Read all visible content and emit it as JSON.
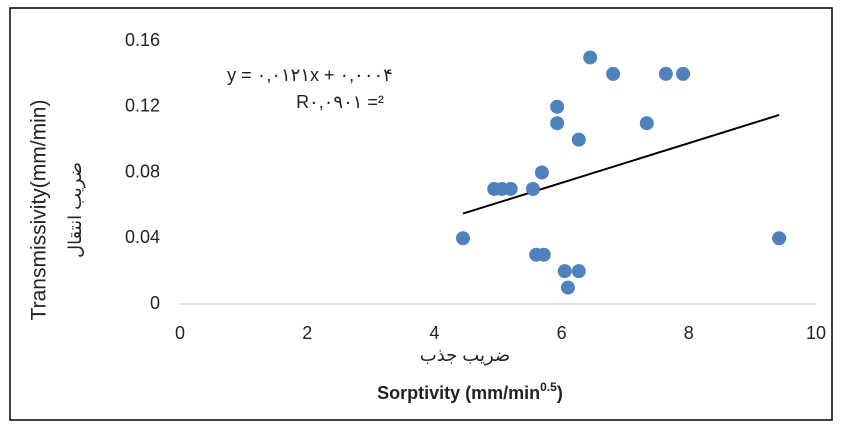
{
  "chart_data": {
    "type": "scatter",
    "x_label_fa": "ضریب جذب",
    "x_label": [
      "Sorptivity (mm/min",
      "0.5",
      ")"
    ],
    "y_label": "Transmissivity(mm/min)",
    "y_label_fa": "ضریب انتقال",
    "annotations": [
      "y = ۰,۰۱۲۱x + ۰,۰۰۰۴",
      "R۰,۰۹۰۱ =²"
    ],
    "series": [
      {
        "color": "#4f81bd",
        "x": [
          6.45,
          6.81,
          7.64,
          7.91,
          5.93,
          5.93,
          7.34,
          6.27,
          5.69,
          4.94,
          5.06,
          5.2,
          5.55,
          4.45,
          9.42,
          5.6,
          5.72,
          6.05,
          6.27,
          6.1
        ],
        "values": [
          0.15,
          0.14,
          0.14,
          0.14,
          0.12,
          0.11,
          0.11,
          0.1,
          0.08,
          0.07,
          0.07,
          0.07,
          0.07,
          0.04,
          0.04,
          0.03,
          0.03,
          0.02,
          0.02,
          0.01
        ]
      }
    ],
    "trendline": {
      "color": "#000000",
      "x": [
        4.45,
        9.42
      ],
      "values": [
        0.055,
        0.115
      ]
    },
    "xlim": [
      0,
      10
    ],
    "xticks": [
      0,
      2,
      4,
      6,
      8,
      10
    ],
    "ylim": [
      0,
      0.16
    ],
    "yticks": [
      0,
      0.04,
      0.08,
      0.12,
      0.16
    ]
  }
}
